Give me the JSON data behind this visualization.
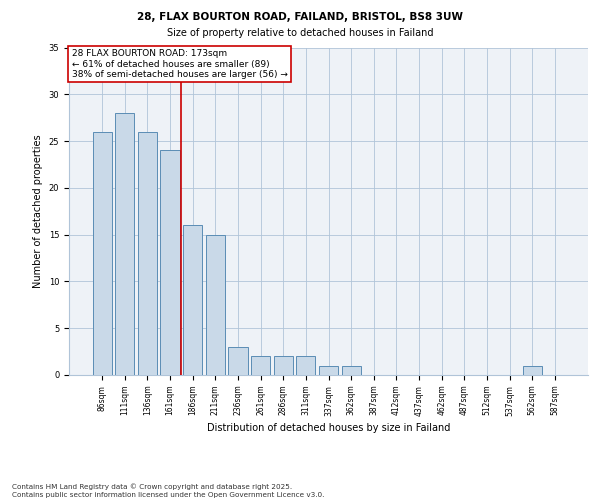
{
  "title_line1": "28, FLAX BOURTON ROAD, FAILAND, BRISTOL, BS8 3UW",
  "title_line2": "Size of property relative to detached houses in Failand",
  "xlabel": "Distribution of detached houses by size in Failand",
  "ylabel": "Number of detached properties",
  "categories": [
    "86sqm",
    "111sqm",
    "136sqm",
    "161sqm",
    "186sqm",
    "211sqm",
    "236sqm",
    "261sqm",
    "286sqm",
    "311sqm",
    "337sqm",
    "362sqm",
    "387sqm",
    "412sqm",
    "437sqm",
    "462sqm",
    "487sqm",
    "512sqm",
    "537sqm",
    "562sqm",
    "587sqm"
  ],
  "values": [
    26,
    28,
    26,
    24,
    16,
    15,
    3,
    2,
    2,
    2,
    1,
    1,
    0,
    0,
    0,
    0,
    0,
    0,
    0,
    1,
    0
  ],
  "bar_color": "#c9d9e8",
  "bar_edge_color": "#5a8db5",
  "highlight_line_color": "#cc0000",
  "annotation_text": "28 FLAX BOURTON ROAD: 173sqm\n← 61% of detached houses are smaller (89)\n38% of semi-detached houses are larger (56) →",
  "annotation_box_color": "#ffffff",
  "annotation_box_edge_color": "#cc0000",
  "ylim": [
    0,
    35
  ],
  "yticks": [
    0,
    5,
    10,
    15,
    20,
    25,
    30,
    35
  ],
  "footer_text": "Contains HM Land Registry data © Crown copyright and database right 2025.\nContains public sector information licensed under the Open Government Licence v3.0.",
  "bg_color": "#eef2f7",
  "title1_fontsize": 7.5,
  "title2_fontsize": 7.0,
  "tick_fontsize": 5.5,
  "label_fontsize": 7.0,
  "annot_fontsize": 6.5,
  "footer_fontsize": 5.2
}
